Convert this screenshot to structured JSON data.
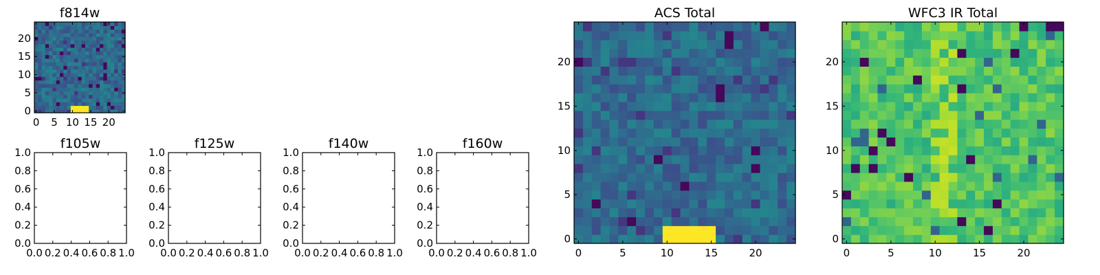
{
  "chart_data": [
    {
      "type": "heatmap",
      "title": "f814w",
      "xlim": [
        -0.5,
        24.5
      ],
      "ylim": [
        -0.5,
        24.5
      ],
      "xticks": [
        0,
        5,
        10,
        15,
        20
      ],
      "yticks": [
        0,
        5,
        10,
        15,
        20
      ],
      "grid": false,
      "colormap": "viridis",
      "value_range": [
        0,
        1
      ],
      "noise_level": 0.35,
      "blob": {
        "x": [
          10,
          14
        ],
        "y": [
          0,
          1
        ],
        "value": 1.0
      }
    },
    {
      "type": "heatmap",
      "title": "f105w",
      "xlim": [
        0,
        1
      ],
      "ylim": [
        0,
        1
      ],
      "xticks": [
        "0.0",
        "0.2",
        "0.4",
        "0.6",
        "0.8",
        "1.0"
      ],
      "yticks": [
        "0.0",
        "0.2",
        "0.4",
        "0.6",
        "0.8",
        "1.0"
      ],
      "empty": true
    },
    {
      "type": "heatmap",
      "title": "f125w",
      "xlim": [
        0,
        1
      ],
      "ylim": [
        0,
        1
      ],
      "xticks": [
        "0.0",
        "0.2",
        "0.4",
        "0.6",
        "0.8",
        "1.0"
      ],
      "yticks": [
        "0.0",
        "0.2",
        "0.4",
        "0.6",
        "0.8",
        "1.0"
      ],
      "empty": true
    },
    {
      "type": "heatmap",
      "title": "f140w",
      "xlim": [
        0,
        1
      ],
      "ylim": [
        0,
        1
      ],
      "xticks": [
        "0.0",
        "0.2",
        "0.4",
        "0.6",
        "0.8",
        "1.0"
      ],
      "yticks": [
        "0.0",
        "0.2",
        "0.4",
        "0.6",
        "0.8",
        "1.0"
      ],
      "empty": true
    },
    {
      "type": "heatmap",
      "title": "f160w",
      "xlim": [
        0,
        1
      ],
      "ylim": [
        0,
        1
      ],
      "xticks": [
        "0.0",
        "0.2",
        "0.4",
        "0.6",
        "0.8",
        "1.0"
      ],
      "yticks": [
        "0.0",
        "0.2",
        "0.4",
        "0.6",
        "0.8",
        "1.0"
      ],
      "empty": true
    },
    {
      "type": "heatmap",
      "title": "ACS Total",
      "xlim": [
        -0.5,
        24.5
      ],
      "ylim": [
        -0.5,
        24.5
      ],
      "xticks": [
        0,
        5,
        10,
        15,
        20
      ],
      "yticks": [
        0,
        5,
        10,
        15,
        20
      ],
      "grid": false,
      "colormap": "viridis",
      "value_range": [
        0,
        1
      ],
      "noise_level": 0.35,
      "blob": {
        "x": [
          10,
          15
        ],
        "y": [
          0,
          1
        ],
        "value": 1.0
      }
    },
    {
      "type": "heatmap",
      "title": "WFC3 IR Total",
      "xlim": [
        -0.5,
        24.5
      ],
      "ylim": [
        -0.5,
        24.5
      ],
      "xticks": [
        0,
        5,
        10,
        15,
        20
      ],
      "yticks": [
        0,
        5,
        10,
        15,
        20
      ],
      "grid": false,
      "colormap": "viridis",
      "value_range": [
        0,
        1
      ],
      "noise_level": 0.72,
      "bright_column": {
        "x": [
          10,
          12
        ],
        "value": 0.92
      }
    }
  ]
}
